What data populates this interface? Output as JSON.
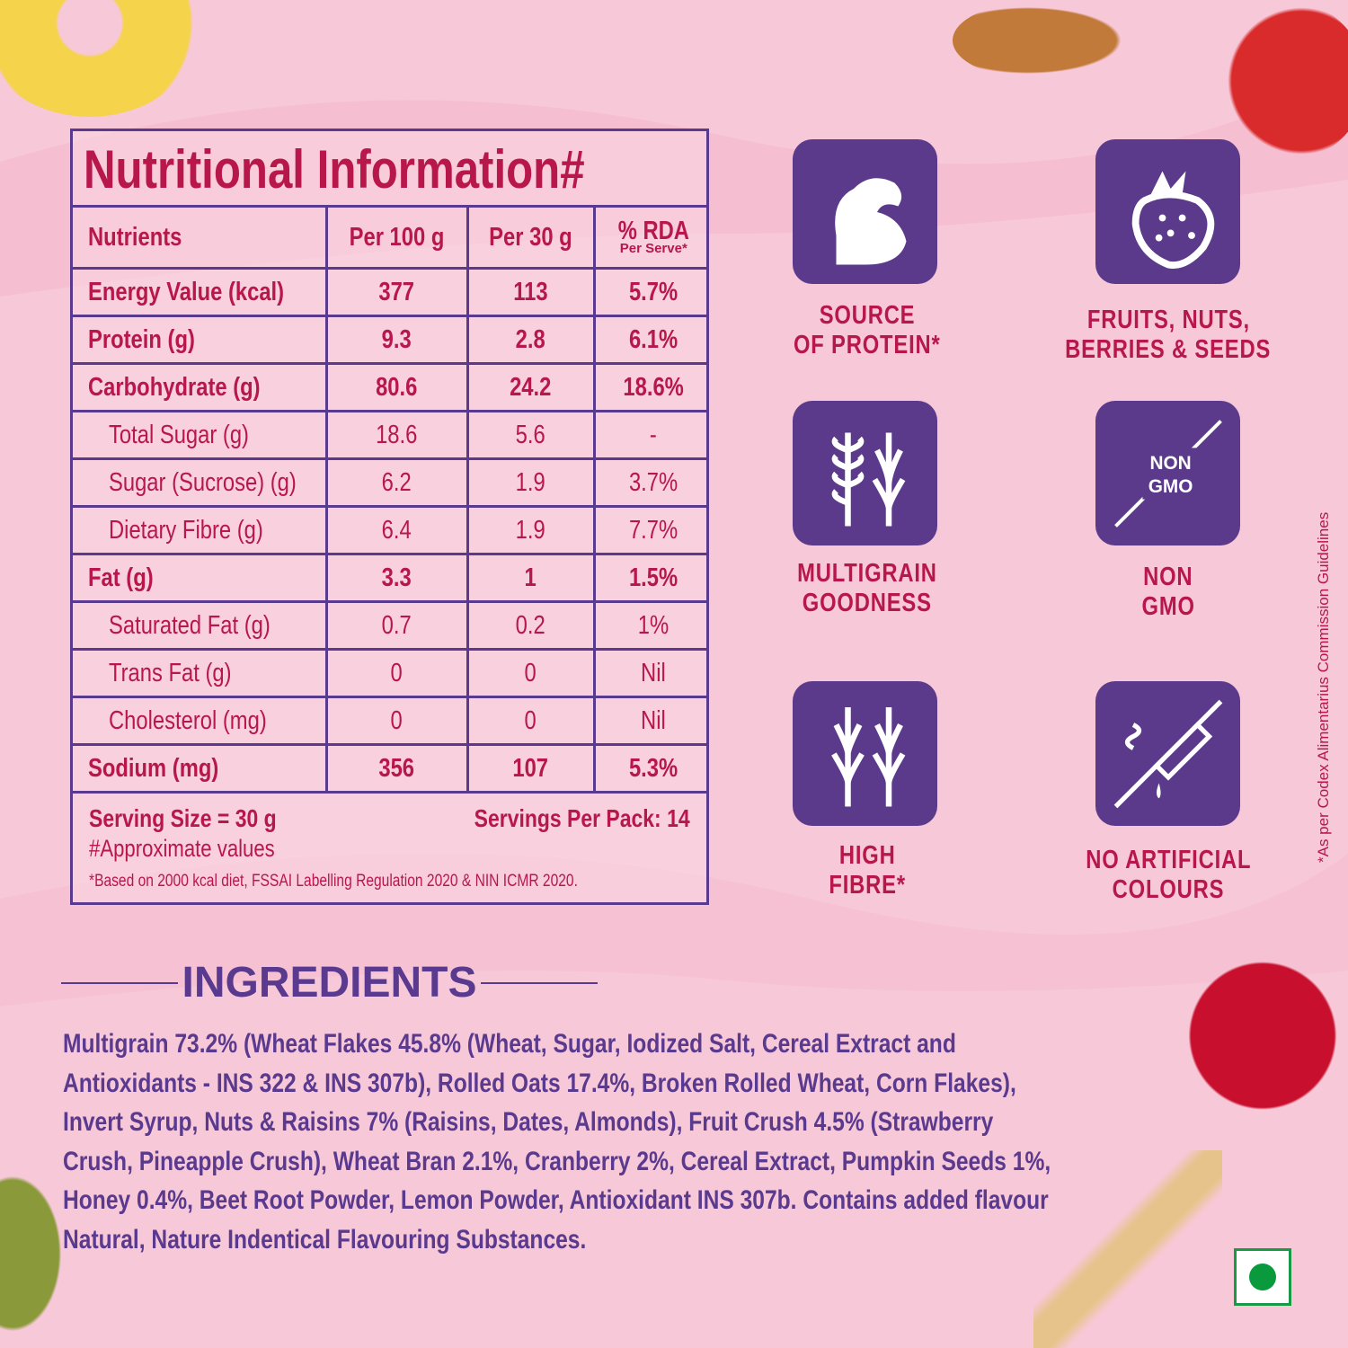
{
  "nutrition": {
    "title": "Nutritional Information#",
    "headers": [
      "Nutrients",
      "Per 100 g",
      "Per 30 g",
      "% RDA"
    ],
    "rda_sub": "Per Serve*",
    "rows": [
      [
        "Energy Value (kcal)",
        "377",
        "113",
        "5.7%"
      ],
      [
        "Protein (g)",
        "9.3",
        "2.8",
        "6.1%"
      ],
      [
        "Carbohydrate (g)",
        "80.6",
        "24.2",
        "18.6%"
      ],
      [
        "Total Sugar (g)",
        "18.6",
        "5.6",
        "-"
      ],
      [
        "Sugar (Sucrose) (g)",
        "6.2",
        "1.9",
        "3.7%"
      ],
      [
        "Dietary Fibre (g)",
        "6.4",
        "1.9",
        "7.7%"
      ],
      [
        "Fat (g)",
        "3.3",
        "1",
        "1.5%"
      ],
      [
        "Saturated Fat (g)",
        "0.7",
        "0.2",
        "1%"
      ],
      [
        "Trans Fat (g)",
        "0",
        "0",
        "Nil"
      ],
      [
        "Cholesterol (mg)",
        "0",
        "0",
        "Nil"
      ],
      [
        "Sodium (mg)",
        "356",
        "107",
        "5.3%"
      ]
    ],
    "serving_size": "Serving Size = 30 g",
    "servings_per_pack": "Servings Per Pack: 14",
    "approx_note": "#Approximate values",
    "rda_note": "*Based on 2000 kcal diet, FSSAI Labelling Regulation 2020 & NIN ICMR 2020."
  },
  "badges": [
    {
      "label1": "SOURCE",
      "label2": "OF PROTEIN*",
      "icon": "flexed-arm-icon"
    },
    {
      "label1": "FRUITS, NUTS,",
      "label2": "BERRIES & SEEDS",
      "icon": "strawberry-icon"
    },
    {
      "label1": "MULTIGRAIN",
      "label2": "GOODNESS",
      "icon": "grains-icon"
    },
    {
      "label1": "NON",
      "label2": "GMO",
      "icon": "non-gmo-icon",
      "icon_text1": "NON",
      "icon_text2": "GMO"
    },
    {
      "label1": "HIGH",
      "label2": "FIBRE*",
      "icon": "wheat-icon"
    },
    {
      "label1": "NO ARTIFICIAL",
      "label2": "COLOURS",
      "icon": "no-dropper-icon"
    }
  ],
  "side_note": "*As per Codex Alimentarius Commission Guidelines",
  "ingredients": {
    "heading": "INGREDIENTS",
    "text": "Multigrain 73.2% (Wheat Flakes 45.8% (Wheat, Sugar, Iodized Salt, Cereal Extract and Antioxidants - INS 322 & INS 307b), Rolled Oats 17.4%, Broken Rolled Wheat, Corn Flakes), Invert Syrup, Nuts & Raisins 7% (Raisins, Dates, Almonds), Fruit Crush 4.5% (Strawberry Crush, Pineapple Crush), Wheat Bran 2.1%, Cranberry 2%, Cereal Extract, Pumpkin Seeds 1%, Honey 0.4%, Beet Root Powder, Lemon Powder, Antioxidant INS 307b. Contains added flavour Natural, Nature Indentical Flavouring Substances."
  },
  "colors": {
    "background": "#f7c8d8",
    "accent_red": "#b8174c",
    "purple": "#5a3a8e",
    "veg_mark": "#0a9a3e"
  }
}
